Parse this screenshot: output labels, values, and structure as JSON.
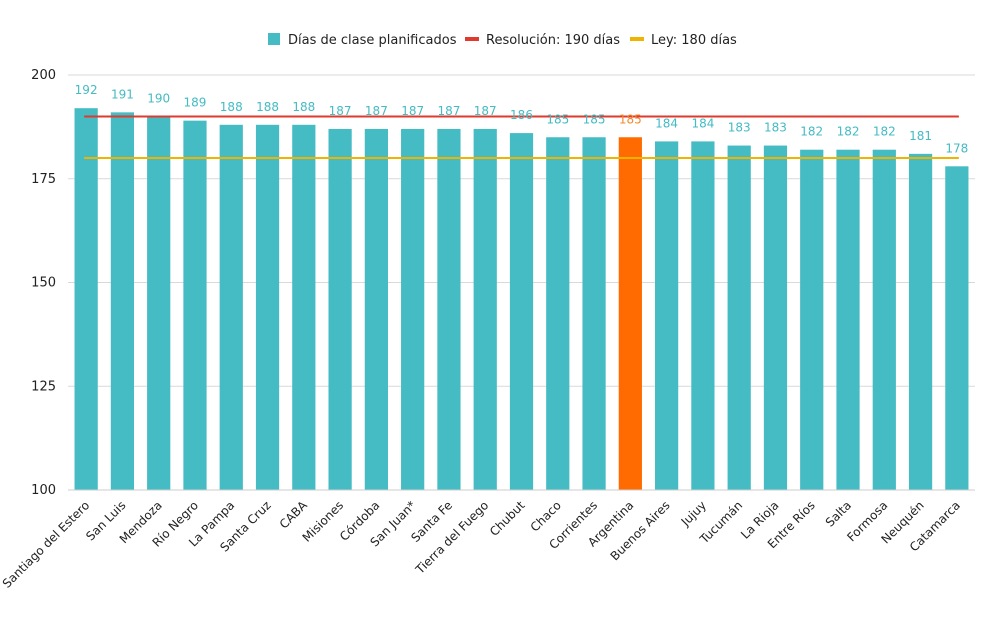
{
  "chart_data": {
    "type": "bar",
    "categories": [
      "Santiago del Estero",
      "San Luis",
      "Mendoza",
      "Río Negro",
      "La Pampa",
      "Santa Cruz",
      "CABA",
      "Misiones",
      "Córdoba",
      "San Juan*",
      "Santa Fe",
      "Tierra del Fuego",
      "Chubut",
      "Chaco",
      "Corrientes",
      "Argentina",
      "Buenos Aires",
      "Jujuy",
      "Tucumán",
      "La Rioja",
      "Entre Ríos",
      "Salta",
      "Formosa",
      "Neuquén",
      "Catamarca"
    ],
    "series": [
      {
        "name": "Días de clase planificados",
        "values": [
          192,
          191,
          190,
          189,
          188,
          188,
          188,
          187,
          187,
          187,
          187,
          187,
          186,
          185,
          185,
          185,
          184,
          184,
          183,
          183,
          182,
          182,
          182,
          181,
          178
        ],
        "color": "#45bbc4"
      }
    ],
    "highlight": {
      "category": "Argentina",
      "color": "#ff6b00"
    },
    "reference_lines": [
      {
        "name": "Resolución: 190 días",
        "value": 190,
        "color": "#e03a2e"
      },
      {
        "name": "Ley: 180 días",
        "value": 180,
        "color": "#f0b400"
      }
    ],
    "title": "",
    "xlabel": "",
    "ylabel": "",
    "ylim": [
      100,
      200
    ],
    "yticks": [
      100,
      125,
      150,
      175,
      200
    ],
    "grid": true,
    "legend_position": "top-center"
  }
}
